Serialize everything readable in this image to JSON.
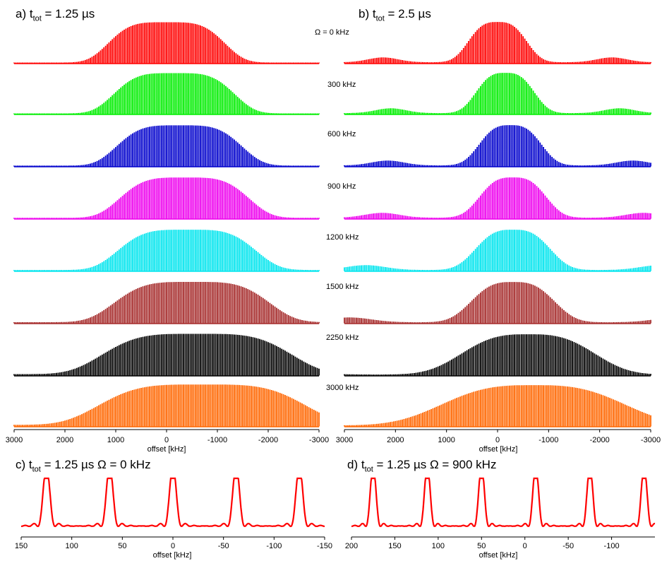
{
  "panels": {
    "a": {
      "prefix": "a) t",
      "sub": "tot",
      "suffix": " = 1.25 µs",
      "xlabel": "offset [kHz]"
    },
    "b": {
      "prefix": "b) t",
      "sub": "tot",
      "suffix": " = 2.5 µs",
      "xlabel": "offset [kHz]"
    },
    "c": {
      "prefix": "c) t",
      "sub": "tot",
      "suffix": " = 1.25 µs  Ω = 0 kHz",
      "xlabel": "offset [kHz]"
    },
    "d": {
      "prefix": "d) t",
      "sub": "tot",
      "suffix": " = 1.25 µs  Ω = 900 kHz",
      "xlabel": "offset [kHz]"
    }
  },
  "omega_labels": [
    "Ω = 0 kHz",
    "300 kHz",
    "600 kHz",
    "900 kHz",
    "1200 kHz",
    "1500 kHz",
    "2250 kHz",
    "3000 kHz"
  ],
  "chart_data": [
    {
      "type": "line",
      "panel": "a",
      "title": "a) t_tot = 1.25 µs",
      "xlabel": "offset [kHz]",
      "xlim": [
        3000,
        -3000
      ],
      "xticks": [
        "3000",
        "2000",
        "1000",
        "0",
        "-1000",
        "-2000",
        "-3000"
      ],
      "series": [
        {
          "name": "Ω = 0 kHz",
          "color": "#ff0000",
          "center": 0,
          "halfwidth": 1350,
          "edge": 0.3
        },
        {
          "name": "300 kHz",
          "color": "#00ee00",
          "center": -150,
          "halfwidth": 1400,
          "edge": 0.3
        },
        {
          "name": "600 kHz",
          "color": "#0000cc",
          "center": -250,
          "halfwidth": 1450,
          "edge": 0.32
        },
        {
          "name": "900 kHz",
          "color": "#ee00ee",
          "center": -350,
          "halfwidth": 1500,
          "edge": 0.35
        },
        {
          "name": "1200 kHz",
          "color": "#00e5ee",
          "center": -400,
          "halfwidth": 1600,
          "edge": 0.38
        },
        {
          "name": "1500 kHz",
          "color": "#a52a2a",
          "center": -500,
          "halfwidth": 1800,
          "edge": 0.4
        },
        {
          "name": "2250 kHz",
          "color": "#000000",
          "center": -600,
          "halfwidth": 2200,
          "edge": 0.5
        },
        {
          "name": "3000 kHz",
          "color": "#ff6600",
          "center": -700,
          "halfwidth": 2400,
          "edge": 0.55
        }
      ]
    },
    {
      "type": "line",
      "panel": "b",
      "title": "b) t_tot = 2.5 µs",
      "xlabel": "offset [kHz]",
      "xlim": [
        3000,
        -3000
      ],
      "xticks": [
        "3000",
        "2000",
        "1000",
        "0",
        "-1000",
        "-2000",
        "-3000"
      ],
      "series": [
        {
          "name": "Ω = 0 kHz",
          "color": "#ff0000",
          "center": 0,
          "halfwidth": 700
        },
        {
          "name": "300 kHz",
          "color": "#00ee00",
          "center": -150,
          "halfwidth": 700
        },
        {
          "name": "600 kHz",
          "color": "#0000cc",
          "center": -250,
          "halfwidth": 750
        },
        {
          "name": "900 kHz",
          "color": "#ee00ee",
          "center": -300,
          "halfwidth": 800
        },
        {
          "name": "1200 kHz",
          "color": "#00e5ee",
          "center": -300,
          "halfwidth": 900
        },
        {
          "name": "1500 kHz",
          "color": "#a52a2a",
          "center": -300,
          "halfwidth": 1000
        },
        {
          "name": "2250 kHz",
          "color": "#000000",
          "center": -600,
          "halfwidth": 1600
        },
        {
          "name": "3000 kHz",
          "color": "#ff6600",
          "center": -700,
          "halfwidth": 2200
        }
      ]
    },
    {
      "type": "line",
      "panel": "c",
      "title": "c) t_tot = 1.25 µs  Ω = 0 kHz",
      "xlabel": "offset [kHz]",
      "xlim": [
        150,
        -150
      ],
      "xticks": [
        "150",
        "100",
        "50",
        "0",
        "-50",
        "-100",
        "-150"
      ],
      "peaks": [
        125,
        62.5,
        0,
        -62.5,
        -125
      ],
      "color": "#ff0000"
    },
    {
      "type": "line",
      "panel": "d",
      "title": "d) t_tot = 1.25 µs  Ω = 900 kHz",
      "xlabel": "offset [kHz]",
      "xlim": [
        200,
        -150
      ],
      "xticks": [
        "200",
        "150",
        "100",
        "50",
        "0",
        "-50",
        "-100"
      ],
      "peaks": [
        175,
        112.5,
        50,
        -12.5,
        -75,
        -137.5
      ],
      "color": "#ff0000"
    }
  ]
}
